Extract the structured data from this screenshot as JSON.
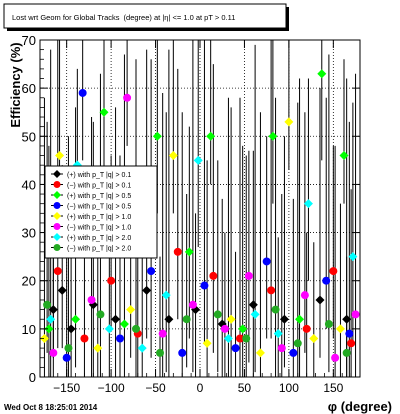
{
  "chart_data": {
    "type": "scatter",
    "title": "Lost wrt Geom for Global Tracks (degree) at |η| <= 1.0 at pT > 0.11",
    "title_part1": "Lost wrt Geom for Global Tracks",
    "title_part2": "(degree) at |η| <= 1.0 at pT > 0.11",
    "xlabel": "φ (degree)",
    "ylabel": "Efficiency (%)",
    "xlim": [
      -180,
      180
    ],
    "ylim": [
      0,
      70
    ],
    "x_ticks": [
      -150,
      -100,
      -50,
      0,
      50,
      100,
      150
    ],
    "x_tick_labels": [
      "−150",
      "−100",
      "−50",
      "0",
      "50",
      "100",
      "150"
    ],
    "y_ticks": [
      0,
      10,
      20,
      30,
      40,
      50,
      60,
      70
    ],
    "y_tick_labels": [
      "0",
      "10",
      "20",
      "30",
      "40",
      "50",
      "60",
      "70"
    ],
    "grid": true,
    "legend_position": "left",
    "series": [
      {
        "name": "(+) with p_T |q| > 0.1",
        "color": "#000000"
      },
      {
        "name": "(−) with p_T |q| > 0.1",
        "color": "#ff0000"
      },
      {
        "name": "(+) with p_T |q| > 0.5",
        "color": "#00ff00"
      },
      {
        "name": "(−) with p_T |q| > 0.5",
        "color": "#0000ff"
      },
      {
        "name": "(+) with p_T |q| > 1.0",
        "color": "#ffff00"
      },
      {
        "name": "(−) with p_T |q| > 1.0",
        "color": "#ff00ff"
      },
      {
        "name": "(+) with p_T |q| > 2.0",
        "color": "#00ffff"
      },
      {
        "name": "(−) with p_T |q| > 2.0",
        "color": "#22aa22"
      }
    ],
    "legend_labels": [
      "(+) with p_T |q| > 0.1",
      "(−) with p_T |q| > 0.1",
      "(+) with p_T |q| > 0.5",
      "(−) with p_T |q| > 0.5",
      "(+) with p_T |q| > 1.0",
      "(−) with p_T |q| > 1.0",
      "(+) with p_T |q| > 2.0",
      "(−) with p_T |q| > 2.0"
    ],
    "points": [
      {
        "x": -165,
        "y": 14,
        "s": 0
      },
      {
        "x": -155,
        "y": 18,
        "s": 0
      },
      {
        "x": -145,
        "y": 10,
        "s": 0
      },
      {
        "x": -120,
        "y": 15,
        "s": 0
      },
      {
        "x": -95,
        "y": 12,
        "s": 0
      },
      {
        "x": -60,
        "y": 18,
        "s": 0
      },
      {
        "x": -35,
        "y": 12,
        "s": 0
      },
      {
        "x": -5,
        "y": 14,
        "s": 0
      },
      {
        "x": 25,
        "y": 11,
        "s": 0
      },
      {
        "x": 60,
        "y": 15,
        "s": 0
      },
      {
        "x": 95,
        "y": 12,
        "s": 0
      },
      {
        "x": 135,
        "y": 16,
        "s": 0
      },
      {
        "x": 165,
        "y": 12,
        "s": 0
      },
      {
        "x": -160,
        "y": 22,
        "s": 1
      },
      {
        "x": -130,
        "y": 8,
        "s": 1
      },
      {
        "x": -100,
        "y": 20,
        "s": 1
      },
      {
        "x": -70,
        "y": 9,
        "s": 1
      },
      {
        "x": -25,
        "y": 26,
        "s": 1
      },
      {
        "x": 15,
        "y": 21,
        "s": 1
      },
      {
        "x": 45,
        "y": 8,
        "s": 1
      },
      {
        "x": 80,
        "y": 18,
        "s": 1
      },
      {
        "x": 120,
        "y": 10,
        "s": 1
      },
      {
        "x": 150,
        "y": 22,
        "s": 1
      },
      {
        "x": 170,
        "y": 7,
        "s": 1
      },
      {
        "x": -170,
        "y": 10,
        "s": 2
      },
      {
        "x": -140,
        "y": 12,
        "s": 2
      },
      {
        "x": -108,
        "y": 55,
        "s": 2
      },
      {
        "x": -85,
        "y": 11,
        "s": 2
      },
      {
        "x": -48,
        "y": 50,
        "s": 2
      },
      {
        "x": -12,
        "y": 26,
        "s": 2
      },
      {
        "x": 12,
        "y": 50,
        "s": 2
      },
      {
        "x": 48,
        "y": 10,
        "s": 2
      },
      {
        "x": 82,
        "y": 50,
        "s": 2
      },
      {
        "x": 112,
        "y": 12,
        "s": 2
      },
      {
        "x": 137,
        "y": 63,
        "s": 2
      },
      {
        "x": 162,
        "y": 46,
        "s": 2
      },
      {
        "x": -150,
        "y": 4,
        "s": 3
      },
      {
        "x": -132,
        "y": 59,
        "s": 3
      },
      {
        "x": -90,
        "y": 8,
        "s": 3
      },
      {
        "x": -55,
        "y": 22,
        "s": 3
      },
      {
        "x": -20,
        "y": 5,
        "s": 3
      },
      {
        "x": 5,
        "y": 19,
        "s": 3
      },
      {
        "x": 40,
        "y": 6,
        "s": 3
      },
      {
        "x": 75,
        "y": 24,
        "s": 3
      },
      {
        "x": 105,
        "y": 5,
        "s": 3
      },
      {
        "x": 142,
        "y": 20,
        "s": 3
      },
      {
        "x": 168,
        "y": 9,
        "s": 3
      },
      {
        "x": -175,
        "y": 8,
        "s": 4
      },
      {
        "x": -158,
        "y": 46,
        "s": 4
      },
      {
        "x": -115,
        "y": 6,
        "s": 4
      },
      {
        "x": -78,
        "y": 14,
        "s": 4
      },
      {
        "x": -30,
        "y": 46,
        "s": 4
      },
      {
        "x": 8,
        "y": 7,
        "s": 4
      },
      {
        "x": 35,
        "y": 12,
        "s": 4
      },
      {
        "x": 68,
        "y": 5,
        "s": 4
      },
      {
        "x": 100,
        "y": 53,
        "s": 4
      },
      {
        "x": 128,
        "y": 8,
        "s": 4
      },
      {
        "x": 158,
        "y": 10,
        "s": 4
      },
      {
        "x": -165,
        "y": 5,
        "s": 5
      },
      {
        "x": -122,
        "y": 16,
        "s": 5
      },
      {
        "x": -82,
        "y": 58,
        "s": 5
      },
      {
        "x": -42,
        "y": 9,
        "s": 5
      },
      {
        "x": -8,
        "y": 15,
        "s": 5
      },
      {
        "x": 28,
        "y": 10,
        "s": 5
      },
      {
        "x": 55,
        "y": 21,
        "s": 5
      },
      {
        "x": 92,
        "y": 6,
        "s": 5
      },
      {
        "x": 118,
        "y": 17,
        "s": 5
      },
      {
        "x": 152,
        "y": 4,
        "s": 5
      },
      {
        "x": 175,
        "y": 13,
        "s": 5
      },
      {
        "x": -168,
        "y": 12,
        "s": 6
      },
      {
        "x": -138,
        "y": 44,
        "s": 6
      },
      {
        "x": -102,
        "y": 10,
        "s": 6
      },
      {
        "x": -65,
        "y": 6,
        "s": 6
      },
      {
        "x": -38,
        "y": 17,
        "s": 6
      },
      {
        "x": -2,
        "y": 45,
        "s": 6
      },
      {
        "x": 32,
        "y": 8,
        "s": 6
      },
      {
        "x": 62,
        "y": 13,
        "s": 6
      },
      {
        "x": 88,
        "y": 9,
        "s": 6
      },
      {
        "x": 122,
        "y": 36,
        "s": 6
      },
      {
        "x": 172,
        "y": 25,
        "s": 6
      },
      {
        "x": -172,
        "y": 15,
        "s": 7
      },
      {
        "x": -148,
        "y": 6,
        "s": 7
      },
      {
        "x": -112,
        "y": 13,
        "s": 7
      },
      {
        "x": -72,
        "y": 10,
        "s": 7
      },
      {
        "x": -45,
        "y": 5,
        "s": 7
      },
      {
        "x": -15,
        "y": 12,
        "s": 7
      },
      {
        "x": 20,
        "y": 13,
        "s": 7
      },
      {
        "x": 52,
        "y": 8,
        "s": 7
      },
      {
        "x": 85,
        "y": 14,
        "s": 7
      },
      {
        "x": 110,
        "y": 7,
        "s": 7
      },
      {
        "x": 145,
        "y": 11,
        "s": 7
      },
      {
        "x": 165,
        "y": 5,
        "s": 7
      }
    ]
  },
  "footer": {
    "timestamp": "Wed Oct  8 18:25:01 2014"
  }
}
